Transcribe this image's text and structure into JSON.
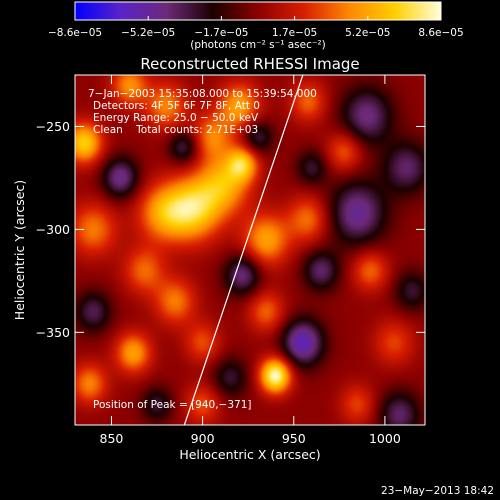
{
  "chart_data": {
    "type": "heatmap",
    "title": "Reconstructed RHESSI Image",
    "xlabel": "Heliocentric X (arcsec)",
    "ylabel": "Heliocentric Y (arcsec)",
    "xlim": [
      830,
      1022
    ],
    "ylim": [
      -395,
      -225
    ],
    "x_ticks": [
      850,
      900,
      950,
      1000
    ],
    "y_ticks": [
      -250,
      -300,
      -350
    ],
    "x_tick_labels": [
      "850",
      "900",
      "950",
      "1000"
    ],
    "y_tick_labels": [
      "−250",
      "−300",
      "−350"
    ],
    "colorbar": {
      "min": -8.6e-05,
      "max": 8.6e-05,
      "tick_labels": [
        "−8.6e−05",
        "−5.2e−05",
        "−1.7e−05",
        "1.7e−05",
        "5.2e−05",
        "8.6e−05"
      ],
      "unit_label": "(photons cm⁻² s⁻¹ asec⁻²)",
      "colors": [
        "#0000ff",
        "#5a22c8",
        "#6c2a78",
        "#1c0000",
        "#8c0000",
        "#d81e00",
        "#ff8800",
        "#ffd000",
        "#ffffdc"
      ]
    },
    "annotations": [
      "7−Jan−2003 15:35:08.000 to 15:39:54.000",
      "Detectors: 4F 5F 6F 7F 8F, Att 0",
      "Energy Range: 25.0 − 50.0 keV",
      "Clean    Total counts: 2.71E+03",
      "Position of Peak = [940,−371]"
    ],
    "limb_line": {
      "x": [
        890,
        955
      ],
      "y": [
        -395,
        -225
      ]
    },
    "peak": {
      "x": 940,
      "y": -371
    },
    "blobs": [
      {
        "x": 940,
        "y": -371,
        "amp": 8.6e-05,
        "s": 6
      },
      {
        "x": 895,
        "y": -290,
        "amp": 6.5e-05,
        "s": 11
      },
      {
        "x": 912,
        "y": -278,
        "amp": 5e-05,
        "s": 10
      },
      {
        "x": 878,
        "y": -292,
        "amp": 4.5e-05,
        "s": 10
      },
      {
        "x": 935,
        "y": -305,
        "amp": 5e-05,
        "s": 9
      },
      {
        "x": 922,
        "y": -268,
        "amp": 5.5e-05,
        "s": 6
      },
      {
        "x": 920,
        "y": -240,
        "amp": 5e-05,
        "s": 8
      },
      {
        "x": 880,
        "y": -240,
        "amp": 4.2e-05,
        "s": 8
      },
      {
        "x": 905,
        "y": -255,
        "amp": 4e-05,
        "s": 8
      },
      {
        "x": 835,
        "y": -258,
        "amp": 6.5e-05,
        "s": 7
      },
      {
        "x": 840,
        "y": -300,
        "amp": 4e-05,
        "s": 9
      },
      {
        "x": 868,
        "y": -320,
        "amp": 3.6e-05,
        "s": 8
      },
      {
        "x": 885,
        "y": -335,
        "amp": 4e-05,
        "s": 8
      },
      {
        "x": 862,
        "y": -360,
        "amp": 5e-05,
        "s": 7
      },
      {
        "x": 900,
        "y": -355,
        "amp": 3e-05,
        "s": 7
      },
      {
        "x": 935,
        "y": -340,
        "amp": 3.5e-05,
        "s": 7
      },
      {
        "x": 958,
        "y": -295,
        "amp": 3.8e-05,
        "s": 8
      },
      {
        "x": 958,
        "y": -238,
        "amp": 3.5e-05,
        "s": 7
      },
      {
        "x": 978,
        "y": -262,
        "amp": 3.5e-05,
        "s": 7
      },
      {
        "x": 992,
        "y": -320,
        "amp": 3.6e-05,
        "s": 7
      },
      {
        "x": 1005,
        "y": -355,
        "amp": 2.8e-05,
        "s": 8
      },
      {
        "x": 838,
        "y": -375,
        "amp": 4.2e-05,
        "s": 7
      },
      {
        "x": 900,
        "y": -385,
        "amp": 3e-05,
        "s": 7
      },
      {
        "x": 860,
        "y": -230,
        "amp": 4.5e-05,
        "s": 7
      },
      {
        "x": 985,
        "y": -385,
        "amp": 2.8e-05,
        "s": 7
      },
      {
        "x": 955,
        "y": -355,
        "amp": -6e-05,
        "s": 8
      },
      {
        "x": 985,
        "y": -292,
        "amp": -5e-05,
        "s": 11
      },
      {
        "x": 990,
        "y": -245,
        "amp": -4.5e-05,
        "s": 10
      },
      {
        "x": 1012,
        "y": -270,
        "amp": -4e-05,
        "s": 9
      },
      {
        "x": 855,
        "y": -275,
        "amp": -4.8e-05,
        "s": 7
      },
      {
        "x": 922,
        "y": -322,
        "amp": -4.5e-05,
        "s": 7
      },
      {
        "x": 890,
        "y": -260,
        "amp": -3.8e-05,
        "s": 6
      },
      {
        "x": 965,
        "y": -320,
        "amp": -4e-05,
        "s": 7
      },
      {
        "x": 1008,
        "y": -390,
        "amp": -4e-05,
        "s": 8
      },
      {
        "x": 840,
        "y": -340,
        "amp": -3.6e-05,
        "s": 7
      },
      {
        "x": 930,
        "y": -255,
        "amp": -3.5e-05,
        "s": 6
      },
      {
        "x": 960,
        "y": -270,
        "amp": -3e-05,
        "s": 6
      },
      {
        "x": 915,
        "y": -372,
        "amp": -3e-05,
        "s": 7
      },
      {
        "x": 875,
        "y": -385,
        "amp": -3e-05,
        "s": 6
      },
      {
        "x": 1015,
        "y": -330,
        "amp": -3e-05,
        "s": 7
      }
    ]
  },
  "footer": {
    "timestamp": "23−May−2013 18:42"
  }
}
